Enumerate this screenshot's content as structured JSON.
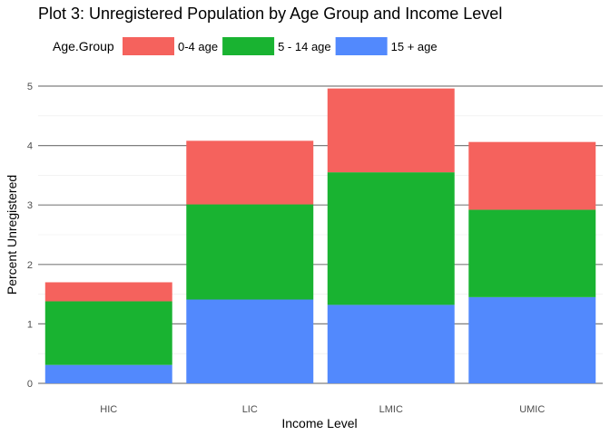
{
  "chart_data": {
    "type": "bar",
    "stacked": true,
    "title": "Plot 3: Unregistered Population by Age Group and Income Level",
    "xlabel": "Income Level",
    "ylabel": "Percent Unregistered",
    "categories": [
      "HIC",
      "LIC",
      "LMIC",
      "UMIC"
    ],
    "ylim": [
      0,
      5
    ],
    "yticks": [
      0,
      1,
      2,
      3,
      4,
      5
    ],
    "grid": true,
    "legend": {
      "title": "Age.Group",
      "placement": "top-left"
    },
    "series": [
      {
        "name": "15 + age",
        "color": "#5289fd",
        "values": [
          0.31,
          1.41,
          1.32,
          1.45
        ]
      },
      {
        "name": "5 - 14 age",
        "color": "#19b331",
        "values": [
          1.07,
          1.6,
          2.23,
          1.47
        ]
      },
      {
        "name": "0-4 age",
        "color": "#f5625d",
        "values": [
          0.32,
          1.07,
          1.41,
          1.14
        ]
      }
    ],
    "legend_order": [
      "0-4 age",
      "5 - 14 age",
      "15 + age"
    ]
  }
}
